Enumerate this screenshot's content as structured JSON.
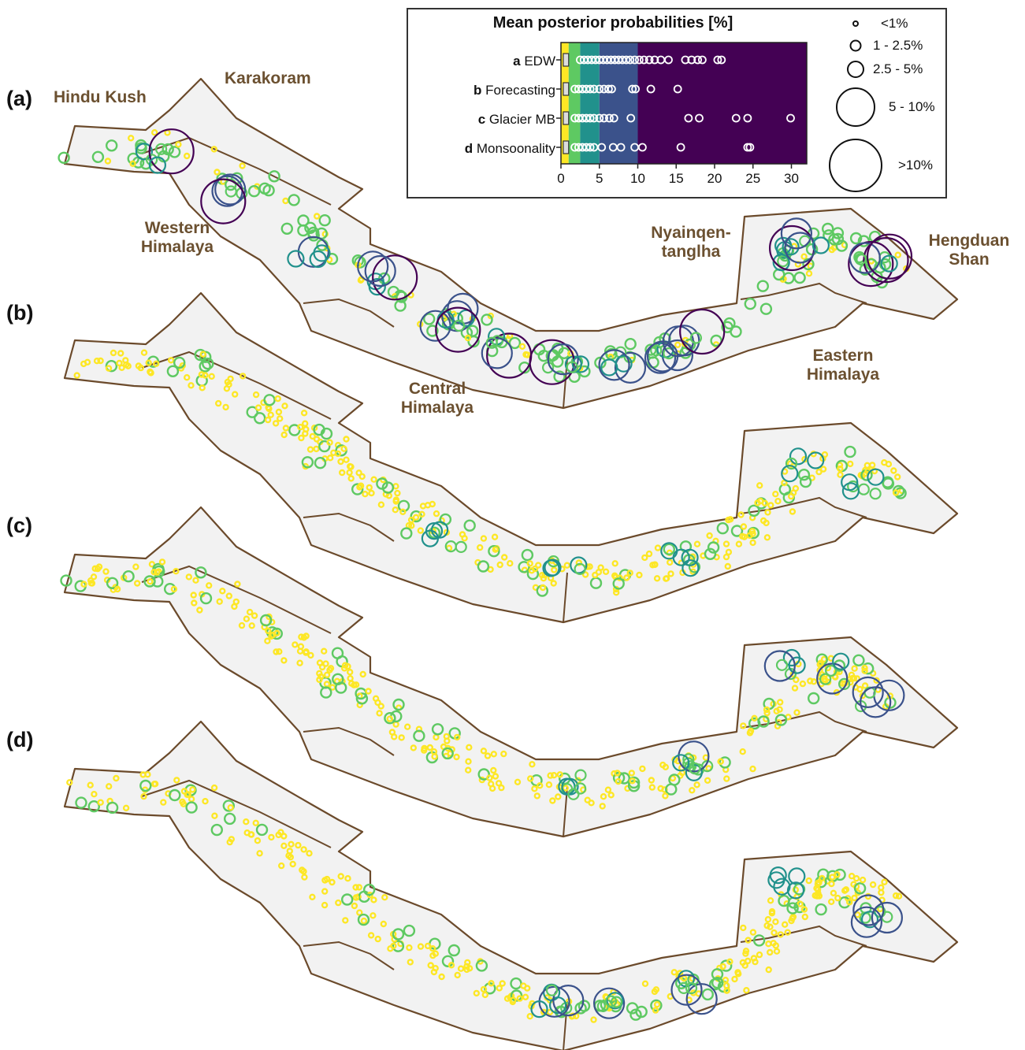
{
  "panels": [
    {
      "label": "(a)"
    },
    {
      "label": "(b)"
    },
    {
      "label": "(c)"
    },
    {
      "label": "(d)"
    }
  ],
  "regions": {
    "hindu_kush": "Hindu Kush",
    "karakoram": "Karakoram",
    "western_himalaya": "Western Himalaya",
    "central_himalaya": "Central Himalaya",
    "nyainqen": "Nyainqen-tanglha",
    "hengduan": "Hengduan Shan",
    "eastern_himalaya": "Eastern Himalaya"
  },
  "legend": {
    "title": "Mean posterior probabilities [%]",
    "rows": [
      {
        "letter": "a",
        "name": "EDW"
      },
      {
        "letter": "b",
        "name": "Forecasting"
      },
      {
        "letter": "c",
        "name": "Glacier MB"
      },
      {
        "letter": "d",
        "name": "Monsoonality"
      }
    ],
    "axis_ticks": [
      "0",
      "5",
      "10",
      "15",
      "20",
      "25",
      "30"
    ],
    "size_classes": [
      "<1%",
      "1 - 2.5%",
      "2.5 - 5%",
      "5 - 10%",
      ">10%"
    ]
  },
  "chart_data": {
    "type": "scatter",
    "title": "Mean posterior probabilities [%]",
    "xlim": [
      0,
      32
    ],
    "color_bins": [
      {
        "range": "0-1",
        "color": "#fde725"
      },
      {
        "range": "1-2.5",
        "color": "#5ec962"
      },
      {
        "range": "2.5-5",
        "color": "#21918c"
      },
      {
        "range": "5-10",
        "color": "#3b528b"
      },
      {
        "range": ">10",
        "color": "#440154"
      }
    ],
    "outliers": {
      "a": [
        2.5,
        3,
        3.5,
        4,
        4.5,
        5,
        5.5,
        6,
        6.5,
        7,
        7.5,
        8,
        8.5,
        9,
        9.6,
        10.2,
        10.8,
        11.5,
        12.2,
        13,
        14,
        16.2,
        17,
        17.8,
        18.4,
        20.4,
        20.9
      ],
      "b": [
        1.8,
        2.3,
        2.8,
        3.3,
        3.8,
        4.3,
        5,
        5.6,
        6.2,
        6.6,
        9.3,
        9.7,
        11.7,
        15.2
      ],
      "c": [
        1.8,
        2.3,
        2.8,
        3.3,
        3.8,
        4.3,
        5,
        5.6,
        6.3,
        6.9,
        9.1,
        16.6,
        18,
        22.8,
        24.3,
        29.9
      ],
      "d": [
        1.8,
        2.3,
        2.8,
        3.3,
        3.8,
        4.3,
        5.3,
        6.8,
        7.8,
        9.6,
        10.6,
        15.6,
        24.3,
        24.6
      ]
    }
  }
}
